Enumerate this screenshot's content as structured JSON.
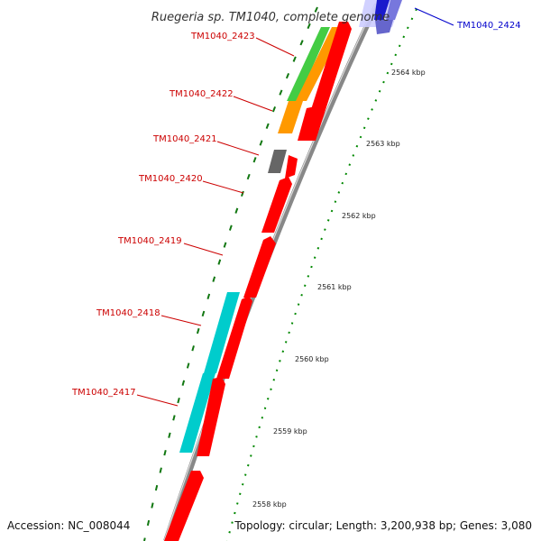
{
  "map": {
    "title": "Ruegeria sp. TM1040, complete genome",
    "accession": "Accession: NC_008044",
    "topology": "Topology: circular; Length: 3,200,938 bp; Genes: 3,080"
  },
  "ticks": [
    {
      "label": "2564 kbp"
    },
    {
      "label": "2563 kbp"
    },
    {
      "label": "2562 kbp"
    },
    {
      "label": "2561 kbp"
    },
    {
      "label": "2560 kbp"
    },
    {
      "label": "2559 kbp"
    },
    {
      "label": "2558 kbp"
    }
  ],
  "genes": [
    {
      "label": "TM1040_2424",
      "color": "#0000cc"
    },
    {
      "label": "TM1040_2423",
      "color": "#cc0000"
    },
    {
      "label": "TM1040_2422",
      "color": "#cc0000"
    },
    {
      "label": "TM1040_2421",
      "color": "#cc0000"
    },
    {
      "label": "TM1040_2420",
      "color": "#cc0000"
    },
    {
      "label": "TM1040_2419",
      "color": "#cc0000"
    },
    {
      "label": "TM1040_2418",
      "color": "#cc0000"
    },
    {
      "label": "TM1040_2417",
      "color": "#cc0000"
    }
  ],
  "colors": {
    "cds_red": "#ff0000",
    "rna_blue": "#3333cc",
    "cog_green": "#33cc33",
    "cog_orange": "#ff9900",
    "cog_gray": "#666666",
    "cog_cyan": "#00cccc",
    "backbone": "#888888",
    "dots": "#009900"
  }
}
